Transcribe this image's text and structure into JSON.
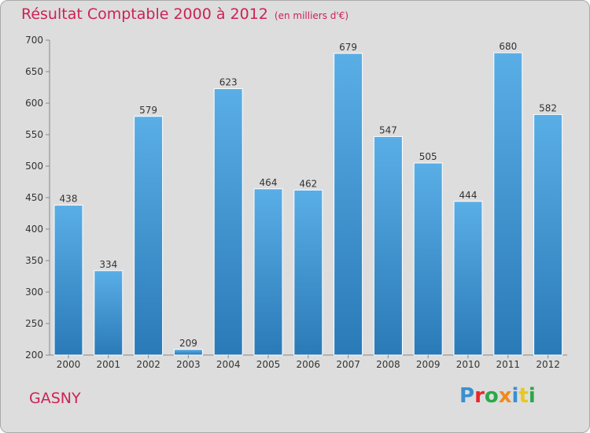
{
  "chart_data": {
    "type": "bar",
    "title": "Résultat Comptable 2000 à 2012",
    "subtitle": "(en milliers d'€)",
    "categories": [
      "2000",
      "2001",
      "2002",
      "2003",
      "2004",
      "2005",
      "2006",
      "2007",
      "2008",
      "2009",
      "2010",
      "2011",
      "2012"
    ],
    "values": [
      438,
      334,
      579,
      209,
      623,
      464,
      462,
      679,
      547,
      505,
      444,
      680,
      582
    ],
    "ylim": [
      200,
      700
    ],
    "yticks": [
      200,
      250,
      300,
      350,
      400,
      450,
      500,
      550,
      600,
      650,
      700
    ],
    "grid": false,
    "colors": {
      "bar_top": "#5aaee6",
      "bar_bottom": "#2a7ab8",
      "title": "#cc2255",
      "background": "#dddddd"
    }
  },
  "footer": {
    "city": "GASNY",
    "logo": "Proxiti"
  },
  "logo_colors": [
    "#3a8fd0",
    "#e8262a",
    "#2aa84a",
    "#f08a1c",
    "#3a8fd0",
    "#e8c81c",
    "#2aa84a"
  ]
}
